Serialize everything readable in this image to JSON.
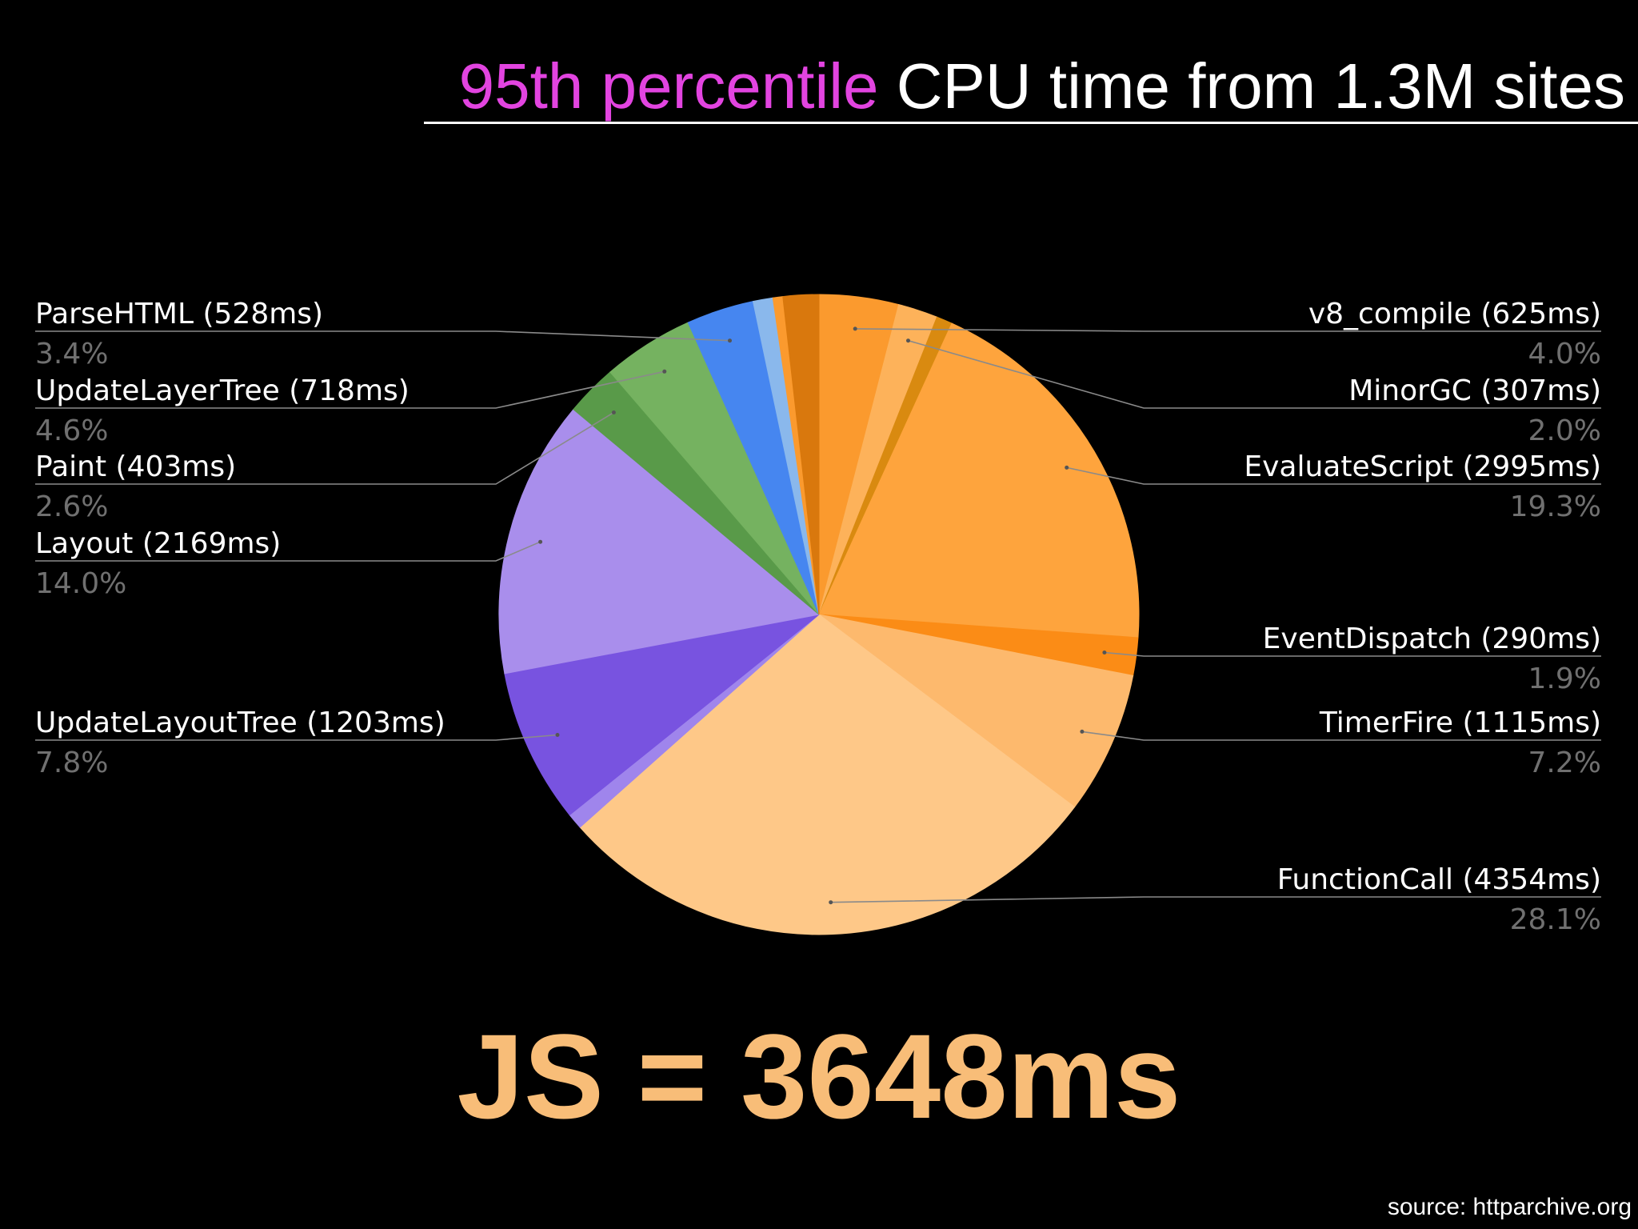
{
  "title": {
    "highlight": "95th percentile",
    "rest": " CPU time from 1.3M sites"
  },
  "footer": {
    "big_text": "JS = 3648ms",
    "source": "source: httparchive.org"
  },
  "colors": {
    "title_highlight": "#e244e0",
    "label_text": "#ffffff",
    "percent_text": "#707070",
    "leader_line": "#8a8a8a",
    "big_text": "#f8bd78"
  },
  "chart_data": {
    "type": "pie",
    "start": "12 o'clock",
    "direction": "clockwise",
    "slices": [
      {
        "name": "v8_compile",
        "label": "v8_compile (625ms)",
        "ms": 625,
        "percent": 4.0,
        "percent_label": "4.0%",
        "color": "#fb9a2e",
        "labeled": true
      },
      {
        "name": "MinorGC",
        "label": "MinorGC (307ms)",
        "ms": 307,
        "percent": 2.0,
        "percent_label": "2.0%",
        "color": "#fdb25a",
        "labeled": true
      },
      {
        "name": "unlabeled",
        "percent": 0.8,
        "color": "#d98a10",
        "labeled": false
      },
      {
        "name": "EvaluateScript",
        "label": "EvaluateScript (2995ms)",
        "ms": 2995,
        "percent": 19.3,
        "percent_label": "19.3%",
        "color": "#fea43d",
        "labeled": true
      },
      {
        "name": "EventDispatch",
        "label": "EventDispatch (290ms)",
        "ms": 290,
        "percent": 1.9,
        "percent_label": "1.9%",
        "color": "#fb8c16",
        "labeled": true
      },
      {
        "name": "TimerFire",
        "label": "TimerFire (1115ms)",
        "ms": 1115,
        "percent": 7.2,
        "percent_label": "7.2%",
        "color": "#fdb96d",
        "labeled": true
      },
      {
        "name": "FunctionCall",
        "label": "FunctionCall (4354ms)",
        "ms": 4354,
        "percent": 28.1,
        "percent_label": "28.1%",
        "color": "#fec888",
        "labeled": true
      },
      {
        "name": "unlabeled",
        "percent": 0.8,
        "color": "#9f85ec",
        "labeled": false
      },
      {
        "name": "UpdateLayoutTree",
        "label": "UpdateLayoutTree (1203ms)",
        "ms": 1203,
        "percent": 7.8,
        "percent_label": "7.8%",
        "color": "#7853e0",
        "labeled": true
      },
      {
        "name": "Layout",
        "label": "Layout (2169ms)",
        "ms": 2169,
        "percent": 14.0,
        "percent_label": "14.0%",
        "color": "#a98eec",
        "labeled": true
      },
      {
        "name": "Paint",
        "label": "Paint (403ms)",
        "ms": 403,
        "percent": 2.6,
        "percent_label": "2.6%",
        "color": "#599a49",
        "labeled": true
      },
      {
        "name": "UpdateLayerTree",
        "label": "UpdateLayerTree (718ms)",
        "ms": 718,
        "percent": 4.6,
        "percent_label": "4.6%",
        "color": "#75b260",
        "labeled": true
      },
      {
        "name": "ParseHTML",
        "label": "ParseHTML (528ms)",
        "ms": 528,
        "percent": 3.4,
        "percent_label": "3.4%",
        "color": "#4686f0",
        "labeled": true
      },
      {
        "name": "unlabeled",
        "percent": 1.0,
        "color": "#8ab8ec",
        "labeled": false
      },
      {
        "name": "unlabeled",
        "percent": 0.5,
        "color": "#fb9a2e",
        "labeled": false
      },
      {
        "name": "unlabeled",
        "percent": 1.8,
        "color": "#d9780d",
        "labeled": false
      }
    ]
  }
}
